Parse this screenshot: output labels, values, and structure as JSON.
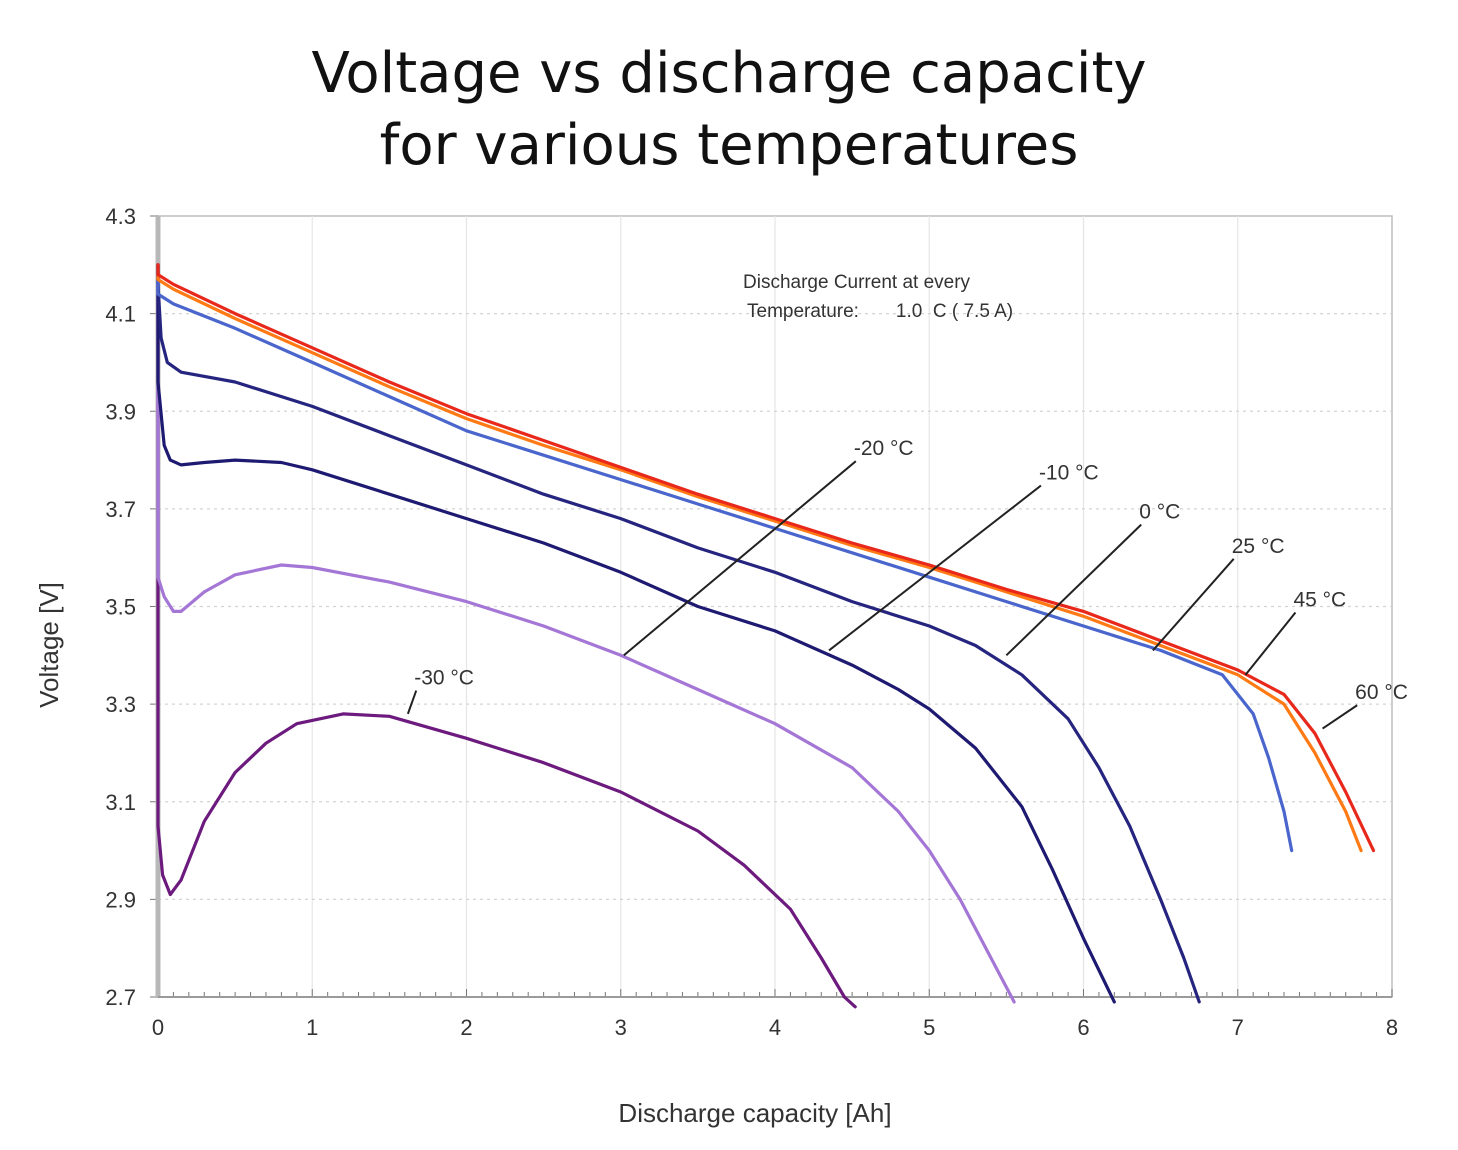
{
  "chart_data": {
    "type": "line",
    "title_line1": "Voltage vs discharge capacity",
    "title_line2": "for various temperatures",
    "xlabel": "Discharge capacity [Ah]",
    "ylabel": "Voltage [V]",
    "xlim": [
      0,
      8
    ],
    "ylim": [
      2.7,
      4.3
    ],
    "xticks": [
      0,
      1,
      2,
      3,
      4,
      5,
      6,
      7,
      8
    ],
    "yticks": [
      "4.3",
      "4.1",
      "3.9",
      "3.7",
      "3.5",
      "3.3",
      "3.1",
      "2.9",
      "2.7"
    ],
    "grid": true,
    "annotation_line1": "Discharge Current at every",
    "annotation_line2": "Temperature:       1.0  C ( 7.5 A)",
    "series": [
      {
        "name": "-30 °C",
        "color": "#6d1a7e",
        "points": [
          [
            0.0,
            3.05
          ],
          [
            0.03,
            2.95
          ],
          [
            0.08,
            2.91
          ],
          [
            0.15,
            2.94
          ],
          [
            0.3,
            3.06
          ],
          [
            0.5,
            3.16
          ],
          [
            0.7,
            3.22
          ],
          [
            0.9,
            3.26
          ],
          [
            1.2,
            3.28
          ],
          [
            1.5,
            3.275
          ],
          [
            2.0,
            3.23
          ],
          [
            2.5,
            3.18
          ],
          [
            3.0,
            3.12
          ],
          [
            3.5,
            3.04
          ],
          [
            3.8,
            2.97
          ],
          [
            4.1,
            2.88
          ],
          [
            4.3,
            2.78
          ],
          [
            4.45,
            2.7
          ],
          [
            4.52,
            2.65
          ]
        ]
      },
      {
        "name": "-20 °C",
        "color": "#a476d6",
        "points": [
          [
            0.0,
            3.56
          ],
          [
            0.04,
            3.52
          ],
          [
            0.1,
            3.49
          ],
          [
            0.15,
            3.49
          ],
          [
            0.3,
            3.53
          ],
          [
            0.5,
            3.565
          ],
          [
            0.8,
            3.585
          ],
          [
            1.0,
            3.58
          ],
          [
            1.5,
            3.55
          ],
          [
            2.0,
            3.51
          ],
          [
            2.5,
            3.46
          ],
          [
            3.0,
            3.4
          ],
          [
            3.5,
            3.33
          ],
          [
            4.0,
            3.26
          ],
          [
            4.5,
            3.17
          ],
          [
            4.8,
            3.08
          ],
          [
            5.0,
            3.0
          ],
          [
            5.2,
            2.9
          ],
          [
            5.4,
            2.78
          ],
          [
            5.55,
            2.69
          ]
        ]
      },
      {
        "name": "-10 °C",
        "color": "#1e1a72",
        "points": [
          [
            0.0,
            3.96
          ],
          [
            0.04,
            3.83
          ],
          [
            0.08,
            3.8
          ],
          [
            0.15,
            3.79
          ],
          [
            0.3,
            3.795
          ],
          [
            0.5,
            3.8
          ],
          [
            0.8,
            3.795
          ],
          [
            1.0,
            3.78
          ],
          [
            1.5,
            3.73
          ],
          [
            2.0,
            3.68
          ],
          [
            2.5,
            3.63
          ],
          [
            3.0,
            3.57
          ],
          [
            3.5,
            3.5
          ],
          [
            4.0,
            3.45
          ],
          [
            4.5,
            3.38
          ],
          [
            4.8,
            3.33
          ],
          [
            5.0,
            3.29
          ],
          [
            5.3,
            3.21
          ],
          [
            5.6,
            3.09
          ],
          [
            5.8,
            2.96
          ],
          [
            6.0,
            2.82
          ],
          [
            6.2,
            2.69
          ]
        ]
      },
      {
        "name": "0 °C",
        "color": "#252580",
        "points": [
          [
            0.0,
            4.16
          ],
          [
            0.02,
            4.05
          ],
          [
            0.06,
            4.0
          ],
          [
            0.15,
            3.98
          ],
          [
            0.5,
            3.96
          ],
          [
            1.0,
            3.91
          ],
          [
            1.5,
            3.85
          ],
          [
            2.0,
            3.79
          ],
          [
            2.5,
            3.73
          ],
          [
            3.0,
            3.68
          ],
          [
            3.5,
            3.62
          ],
          [
            4.0,
            3.57
          ],
          [
            4.5,
            3.51
          ],
          [
            5.0,
            3.46
          ],
          [
            5.3,
            3.42
          ],
          [
            5.6,
            3.36
          ],
          [
            5.9,
            3.27
          ],
          [
            6.1,
            3.17
          ],
          [
            6.3,
            3.05
          ],
          [
            6.5,
            2.9
          ],
          [
            6.65,
            2.78
          ],
          [
            6.75,
            2.69
          ]
        ]
      },
      {
        "name": "25 °C",
        "color": "#4a66cc",
        "points": [
          [
            0.0,
            4.14
          ],
          [
            0.1,
            4.12
          ],
          [
            0.5,
            4.07
          ],
          [
            1.0,
            4.0
          ],
          [
            1.5,
            3.93
          ],
          [
            2.0,
            3.86
          ],
          [
            2.5,
            3.81
          ],
          [
            3.0,
            3.76
          ],
          [
            3.5,
            3.71
          ],
          [
            4.0,
            3.66
          ],
          [
            4.5,
            3.61
          ],
          [
            5.0,
            3.56
          ],
          [
            5.5,
            3.51
          ],
          [
            6.0,
            3.46
          ],
          [
            6.5,
            3.41
          ],
          [
            6.9,
            3.36
          ],
          [
            7.1,
            3.28
          ],
          [
            7.2,
            3.19
          ],
          [
            7.3,
            3.08
          ],
          [
            7.35,
            3.0
          ]
        ]
      },
      {
        "name": "45 °C",
        "color": "#ff7a14",
        "points": [
          [
            0.0,
            4.17
          ],
          [
            0.1,
            4.15
          ],
          [
            0.5,
            4.09
          ],
          [
            1.0,
            4.02
          ],
          [
            1.5,
            3.95
          ],
          [
            2.0,
            3.885
          ],
          [
            2.5,
            3.83
          ],
          [
            3.0,
            3.78
          ],
          [
            3.5,
            3.725
          ],
          [
            4.0,
            3.675
          ],
          [
            4.5,
            3.625
          ],
          [
            5.0,
            3.58
          ],
          [
            5.5,
            3.53
          ],
          [
            6.0,
            3.48
          ],
          [
            6.5,
            3.42
          ],
          [
            7.0,
            3.36
          ],
          [
            7.3,
            3.3
          ],
          [
            7.5,
            3.2
          ],
          [
            7.7,
            3.08
          ],
          [
            7.8,
            3.0
          ]
        ]
      },
      {
        "name": "60 °C",
        "color": "#e8281a",
        "points": [
          [
            0.0,
            4.18
          ],
          [
            0.1,
            4.16
          ],
          [
            0.5,
            4.1
          ],
          [
            1.0,
            4.03
          ],
          [
            1.5,
            3.96
          ],
          [
            2.0,
            3.895
          ],
          [
            2.5,
            3.84
          ],
          [
            3.0,
            3.785
          ],
          [
            3.5,
            3.73
          ],
          [
            4.0,
            3.68
          ],
          [
            4.5,
            3.63
          ],
          [
            5.0,
            3.585
          ],
          [
            5.5,
            3.535
          ],
          [
            6.0,
            3.49
          ],
          [
            6.5,
            3.43
          ],
          [
            7.0,
            3.37
          ],
          [
            7.3,
            3.32
          ],
          [
            7.5,
            3.24
          ],
          [
            7.7,
            3.12
          ],
          [
            7.88,
            3.0
          ]
        ]
      }
    ],
    "callouts": [
      {
        "label": "-30 °C",
        "x": 1.7,
        "y": 3.34,
        "to": [
          1.62,
          3.28
        ]
      },
      {
        "label": "-20 °C",
        "x": 4.55,
        "y": 3.81,
        "to": [
          3.02,
          3.4
        ]
      },
      {
        "label": "-10 °C",
        "x": 5.75,
        "y": 3.76,
        "to": [
          4.35,
          3.41
        ]
      },
      {
        "label": "0 °C",
        "x": 6.4,
        "y": 3.68,
        "to": [
          5.5,
          3.4
        ]
      },
      {
        "label": "25 °C",
        "x": 7.0,
        "y": 3.61,
        "to": [
          6.45,
          3.41
        ]
      },
      {
        "label": "45 °C",
        "x": 7.4,
        "y": 3.5,
        "to": [
          7.05,
          3.36
        ]
      },
      {
        "label": "60 °C",
        "x": 7.8,
        "y": 3.31,
        "to": [
          7.55,
          3.25
        ]
      }
    ]
  }
}
